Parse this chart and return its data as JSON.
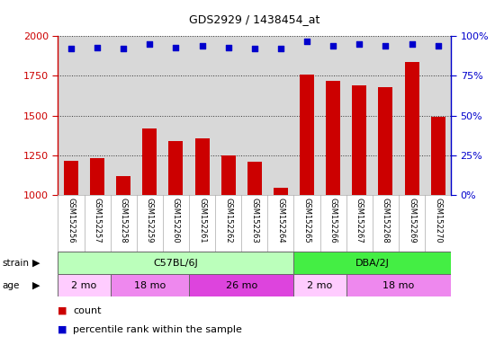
{
  "title": "GDS2929 / 1438454_at",
  "samples": [
    "GSM152256",
    "GSM152257",
    "GSM152258",
    "GSM152259",
    "GSM152260",
    "GSM152261",
    "GSM152262",
    "GSM152263",
    "GSM152264",
    "GSM152265",
    "GSM152266",
    "GSM152267",
    "GSM152268",
    "GSM152269",
    "GSM152270"
  ],
  "counts": [
    1215,
    1230,
    1120,
    1420,
    1340,
    1355,
    1250,
    1210,
    1045,
    1760,
    1720,
    1690,
    1680,
    1840,
    1490
  ],
  "percentile_ranks": [
    92,
    93,
    92,
    95,
    93,
    94,
    93,
    92,
    92,
    97,
    94,
    95,
    94,
    95,
    94
  ],
  "ymin": 1000,
  "ymax": 2000,
  "yticks": [
    1000,
    1250,
    1500,
    1750,
    2000
  ],
  "right_yticks": [
    0,
    25,
    50,
    75,
    100
  ],
  "bar_color": "#cc0000",
  "dot_color": "#0000cc",
  "strain_c57_color": "#bbffbb",
  "strain_dba_color": "#44ee44",
  "age_2mo_color": "#ffccff",
  "age_18mo_color": "#ee88ee",
  "age_26mo_color": "#dd44dd",
  "age_groups": [
    {
      "label": "2 mo",
      "start": 0,
      "end": 2,
      "color": "#ffccff"
    },
    {
      "label": "18 mo",
      "start": 2,
      "end": 5,
      "color": "#ee88ee"
    },
    {
      "label": "26 mo",
      "start": 5,
      "end": 9,
      "color": "#dd44dd"
    },
    {
      "label": "2 mo",
      "start": 9,
      "end": 11,
      "color": "#ffccff"
    },
    {
      "label": "18 mo",
      "start": 11,
      "end": 15,
      "color": "#ee88ee"
    }
  ],
  "strain_groups": [
    {
      "label": "C57BL/6J",
      "start": 0,
      "end": 9,
      "color": "#bbffbb"
    },
    {
      "label": "DBA/2J",
      "start": 9,
      "end": 15,
      "color": "#44ee44"
    }
  ],
  "background_color": "#ffffff",
  "plot_bg_color": "#d8d8d8",
  "left_tick_color": "#cc0000",
  "right_tick_color": "#0000cc"
}
